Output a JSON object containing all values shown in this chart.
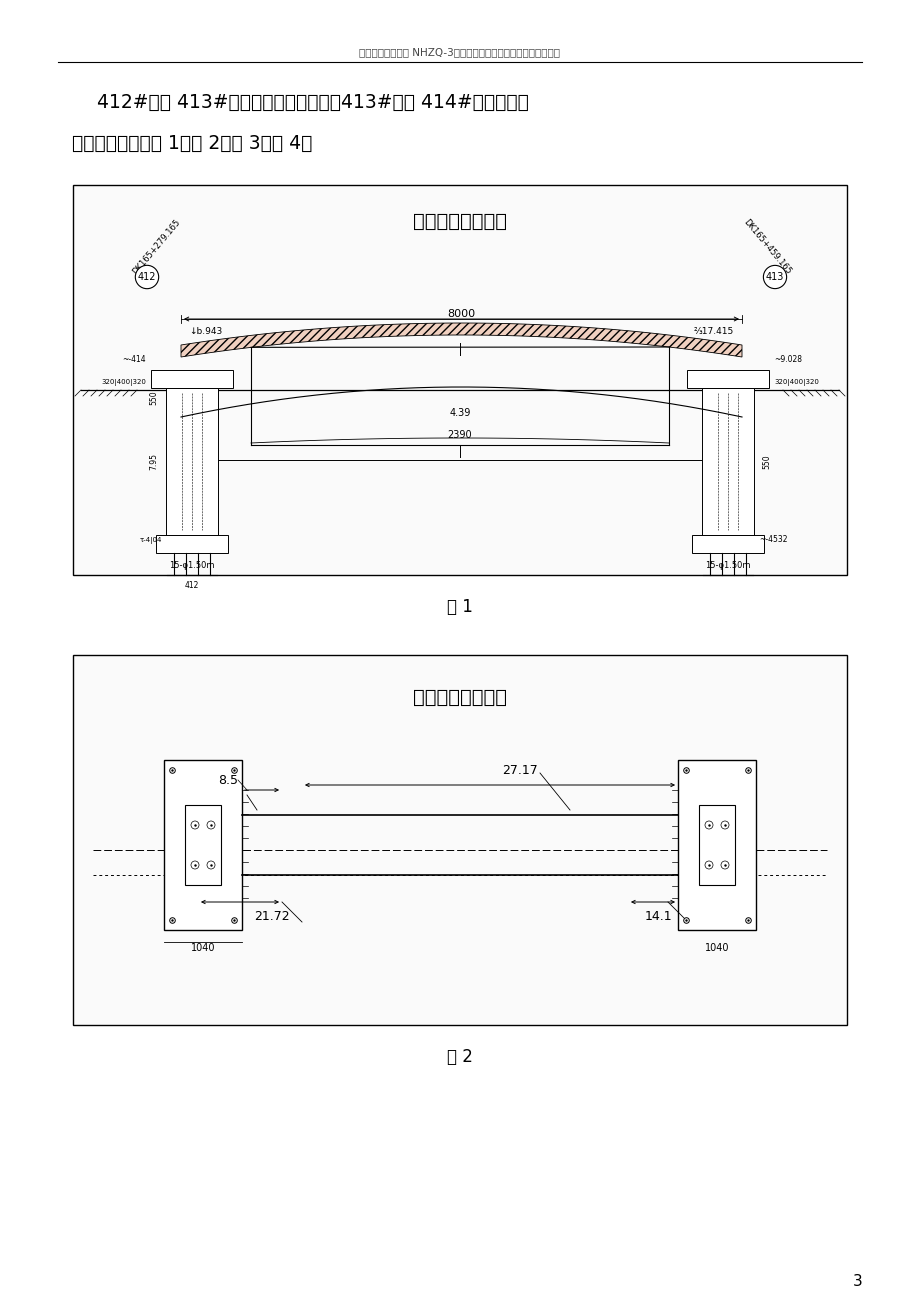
{
  "page_bg": "#ffffff",
  "header_text": "宁杭鐵路客运专线 NHZQ-3标长兴特大桥悬浇连续梁施工组织设计",
  "body_line1": "412#墓和 413#墓之间跨越太湖大道，413#墓和 414#墓之间跨越",
  "body_line2": "长新港河道。见图 1、图 2、图 3、图 4。",
  "fig1_label": "图 1",
  "fig2_label": "图 2",
  "page_number": "3",
  "fig1_title": "跨太湖大道立面图",
  "fig1_left_sta": "DK165+279.165",
  "fig1_left_pier": "412",
  "fig1_right_sta": "DK165+459.165",
  "fig1_right_pier": "413",
  "fig2_title": "跨太湖大道平面图",
  "fig2_dim1": "8.5",
  "fig2_dim2": "27.17",
  "fig2_dim3": "21.72",
  "fig2_dim4": "14.1",
  "fig2_base": "1040"
}
